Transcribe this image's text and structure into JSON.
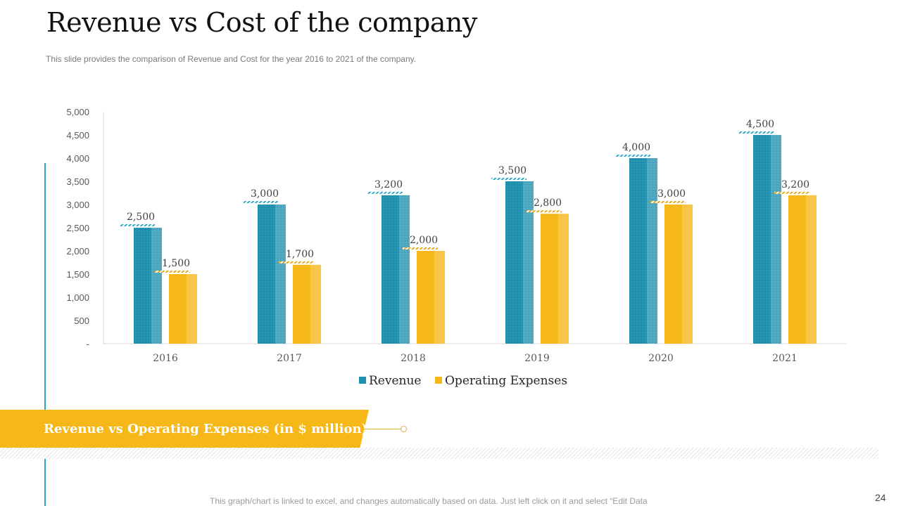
{
  "slide": {
    "title": "Revenue vs Cost of the company",
    "subtitle": "This slide provides  the comparison of Revenue  and Cost for the year 2016 to 2021 of the company.",
    "band_label": "Revenue vs Operating Expenses (in $ million)",
    "footnote": "This graph/chart is linked to excel, and changes automatically based on data. Just left click on it and select “Edit Data",
    "page_number": "24"
  },
  "colors": {
    "revenue": "#1f8fae",
    "expenses": "#f5b818",
    "accent_line": "#2aa7c4"
  },
  "chart_data": {
    "type": "bar",
    "title": "Revenue vs Operating Expenses (in $ million)",
    "categories": [
      "2016",
      "2017",
      "2018",
      "2019",
      "2020",
      "2021"
    ],
    "series": [
      {
        "name": "Revenue",
        "values": [
          2500,
          3000,
          3200,
          3500,
          4000,
          4500
        ],
        "labels": [
          "2,500",
          "3,000",
          "3,200",
          "3,500",
          "4,000",
          "4,500"
        ]
      },
      {
        "name": "Operating Expenses",
        "values": [
          1500,
          1700,
          2000,
          2800,
          3000,
          3200
        ],
        "labels": [
          "1,500",
          "1,700",
          "2,000",
          "2,800",
          "3,000",
          "3,200"
        ]
      }
    ],
    "ylim": [
      0,
      5000
    ],
    "yticks": [
      0,
      500,
      1000,
      1500,
      2000,
      2500,
      3000,
      3500,
      4000,
      4500,
      5000
    ],
    "ytick_labels": [
      "-",
      "500",
      "1,000",
      "1,500",
      "2,000",
      "2,500",
      "3,000",
      "3,500",
      "4,000",
      "4,500",
      "5,000"
    ],
    "xlabel": "",
    "ylabel": "",
    "legend": "bottom-center",
    "grid": false
  }
}
